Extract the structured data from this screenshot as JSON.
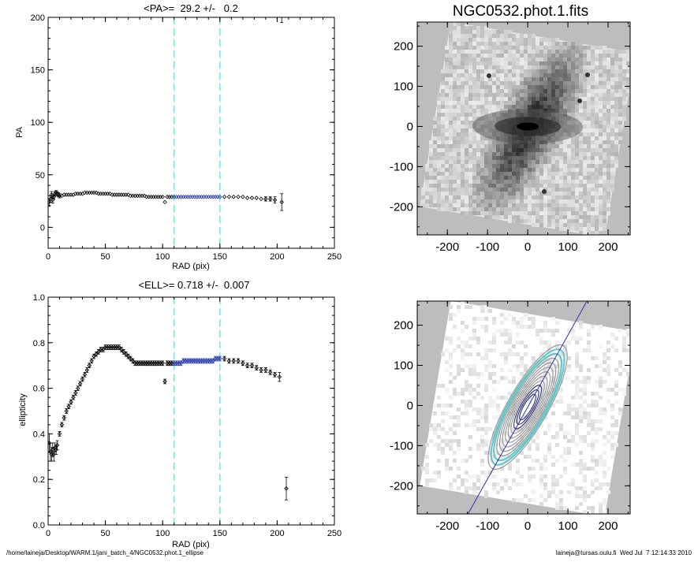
{
  "colors": {
    "background": "#ffffff",
    "axis": "#000000",
    "radius_marker": "#7fe0e0",
    "fit_points": "#2233aa",
    "data_points": "#000000",
    "image_bg": "#bdbdbd",
    "contour": "#9a9a9a",
    "contour_fit": "#6cc6c6",
    "pa_line": "#3333aa"
  },
  "chart_data": [
    {
      "id": "pa_profile",
      "type": "scatter",
      "title": "<PA>=  29.2 +/-   0.2",
      "xlabel": "RAD (pix)",
      "ylabel": "PA",
      "xlim": [
        0,
        250
      ],
      "ylim": [
        -20,
        200
      ],
      "xticks": [
        0,
        50,
        100,
        150,
        200,
        250
      ],
      "yticks": [
        0,
        50,
        100,
        150,
        200
      ],
      "fit_range": [
        110,
        150
      ],
      "mean_errorbar": {
        "x": 204,
        "low": 195,
        "high": 200
      },
      "x": [
        1,
        2,
        3,
        4,
        5,
        6,
        7,
        8,
        9,
        10,
        12,
        14,
        16,
        18,
        20,
        22,
        24,
        26,
        28,
        30,
        32,
        34,
        36,
        38,
        40,
        42,
        44,
        46,
        48,
        50,
        52,
        54,
        56,
        58,
        60,
        62,
        64,
        66,
        68,
        70,
        72,
        74,
        76,
        78,
        80,
        82,
        84,
        86,
        88,
        90,
        92,
        94,
        96,
        98,
        100,
        102,
        104,
        106,
        108,
        110,
        112,
        114,
        116,
        118,
        120,
        122,
        124,
        126,
        128,
        130,
        132,
        134,
        136,
        138,
        140,
        142,
        144,
        146,
        148,
        150,
        154,
        158,
        162,
        166,
        170,
        174,
        178,
        182,
        186,
        190,
        194,
        198,
        204
      ],
      "y": [
        24,
        27,
        31,
        26,
        29,
        32,
        33,
        32,
        31,
        30,
        30,
        31,
        31,
        31,
        31,
        31,
        32,
        32,
        32,
        32,
        33,
        33,
        33,
        33,
        33,
        33,
        32,
        32,
        32,
        32,
        32,
        32,
        31,
        31,
        31,
        31,
        31,
        31,
        31,
        31,
        30,
        30,
        30,
        30,
        30,
        30,
        30,
        29,
        29,
        29,
        29,
        29,
        29,
        29,
        29,
        24,
        29,
        29,
        29,
        29,
        29,
        29,
        29,
        29,
        29,
        29,
        29,
        29,
        29,
        29,
        29,
        29,
        29,
        29,
        29,
        29,
        29,
        29,
        29,
        29,
        29,
        29,
        29,
        29,
        29,
        28,
        28,
        28,
        27,
        27,
        27,
        26,
        24
      ],
      "err": [
        3,
        3,
        3,
        3,
        2,
        2,
        2,
        2,
        2,
        2,
        1,
        1,
        1,
        1,
        1,
        1,
        1,
        1,
        1,
        1,
        1,
        1,
        1,
        1,
        1,
        1,
        1,
        1,
        1,
        1,
        1,
        1,
        1,
        1,
        1,
        1,
        1,
        1,
        1,
        1,
        1,
        1,
        1,
        1,
        1,
        1,
        1,
        1,
        1,
        1,
        1,
        1,
        1,
        1,
        1,
        1,
        1,
        1,
        1,
        1,
        1,
        1,
        1,
        1,
        1,
        1,
        1,
        1,
        1,
        1,
        1,
        1,
        1,
        1,
        1,
        1,
        1,
        1,
        1,
        1,
        1,
        1,
        1,
        1,
        1,
        1,
        1,
        1,
        1,
        2,
        2,
        3,
        8
      ]
    },
    {
      "id": "ell_profile",
      "type": "scatter",
      "title": "<ELL>= 0.718 +/-  0.007",
      "xlabel": "RAD (pix)",
      "ylabel": "ellipticity",
      "xlim": [
        0,
        250
      ],
      "ylim": [
        0.0,
        1.0
      ],
      "xticks": [
        0,
        50,
        100,
        150,
        200,
        250
      ],
      "yticks": [
        "0.0",
        "0.2",
        "0.4",
        "0.6",
        "0.8",
        "1.0"
      ],
      "fit_range": [
        110,
        150
      ],
      "x": [
        1,
        2,
        3,
        4,
        5,
        6,
        7,
        8,
        10,
        12,
        14,
        16,
        18,
        20,
        22,
        24,
        26,
        28,
        30,
        32,
        34,
        36,
        38,
        40,
        42,
        44,
        46,
        48,
        50,
        52,
        54,
        56,
        58,
        60,
        62,
        64,
        66,
        68,
        70,
        72,
        74,
        76,
        78,
        80,
        82,
        84,
        86,
        88,
        90,
        92,
        94,
        96,
        98,
        100,
        102,
        104,
        106,
        108,
        110,
        112,
        114,
        116,
        118,
        120,
        122,
        124,
        126,
        128,
        130,
        132,
        134,
        136,
        138,
        140,
        142,
        144,
        146,
        148,
        150,
        154,
        158,
        162,
        166,
        170,
        174,
        178,
        182,
        186,
        190,
        194,
        198,
        202,
        208
      ],
      "y": [
        0.36,
        0.32,
        0.31,
        0.33,
        0.31,
        0.34,
        0.33,
        0.35,
        0.4,
        0.44,
        0.47,
        0.5,
        0.52,
        0.54,
        0.56,
        0.58,
        0.6,
        0.62,
        0.64,
        0.66,
        0.68,
        0.7,
        0.72,
        0.74,
        0.75,
        0.76,
        0.77,
        0.77,
        0.78,
        0.78,
        0.78,
        0.78,
        0.78,
        0.78,
        0.78,
        0.77,
        0.76,
        0.75,
        0.74,
        0.73,
        0.72,
        0.71,
        0.71,
        0.71,
        0.71,
        0.71,
        0.71,
        0.71,
        0.71,
        0.71,
        0.71,
        0.71,
        0.71,
        0.71,
        0.63,
        0.71,
        0.71,
        0.71,
        0.71,
        0.71,
        0.71,
        0.71,
        0.72,
        0.72,
        0.72,
        0.72,
        0.72,
        0.72,
        0.72,
        0.72,
        0.72,
        0.72,
        0.72,
        0.72,
        0.72,
        0.72,
        0.73,
        0.73,
        0.73,
        0.73,
        0.72,
        0.72,
        0.72,
        0.71,
        0.7,
        0.7,
        0.69,
        0.68,
        0.68,
        0.67,
        0.66,
        0.65,
        0.16
      ],
      "err": [
        0.04,
        0.04,
        0.03,
        0.03,
        0.03,
        0.02,
        0.02,
        0.02,
        0.01,
        0.01,
        0.01,
        0.01,
        0.01,
        0.01,
        0.01,
        0.01,
        0.01,
        0.01,
        0.01,
        0.01,
        0.01,
        0.01,
        0.01,
        0.01,
        0.01,
        0.01,
        0.01,
        0.01,
        0.01,
        0.01,
        0.01,
        0.01,
        0.01,
        0.01,
        0.01,
        0.01,
        0.01,
        0.01,
        0.01,
        0.01,
        0.01,
        0.01,
        0.01,
        0.01,
        0.01,
        0.01,
        0.01,
        0.01,
        0.01,
        0.01,
        0.01,
        0.01,
        0.01,
        0.01,
        0.01,
        0.01,
        0.01,
        0.01,
        0.01,
        0.01,
        0.01,
        0.01,
        0.01,
        0.01,
        0.01,
        0.01,
        0.01,
        0.01,
        0.01,
        0.01,
        0.01,
        0.01,
        0.01,
        0.01,
        0.01,
        0.01,
        0.01,
        0.01,
        0.01,
        0.01,
        0.01,
        0.01,
        0.01,
        0.01,
        0.01,
        0.01,
        0.01,
        0.01,
        0.01,
        0.01,
        0.01,
        0.02,
        0.05
      ]
    },
    {
      "id": "galaxy_image",
      "type": "image",
      "title": "NGC0532.phot.1.fits",
      "xlim": [
        -275,
        255
      ],
      "ylim": [
        -270,
        260
      ],
      "xticks": [
        -200,
        -100,
        0,
        100,
        200
      ],
      "yticks": [
        -200,
        -100,
        0,
        100,
        200
      ]
    },
    {
      "id": "contour_image",
      "type": "image",
      "title": "",
      "xlim": [
        -275,
        255
      ],
      "ylim": [
        -270,
        260
      ],
      "xticks": [
        -200,
        -100,
        0,
        100,
        200
      ],
      "yticks": [
        -200,
        -100,
        0,
        100,
        200
      ],
      "position_angle_deg": 29.2,
      "ellipticity": 0.718
    }
  ],
  "footer": {
    "path": "/home/laineja/Desktop/WARM.1/jani_batch_4/NGC0532.phot.1_ellipse",
    "stamp": "laineja@tursas.oulu.fi  Wed Jul  7 12:14:33 2010"
  }
}
